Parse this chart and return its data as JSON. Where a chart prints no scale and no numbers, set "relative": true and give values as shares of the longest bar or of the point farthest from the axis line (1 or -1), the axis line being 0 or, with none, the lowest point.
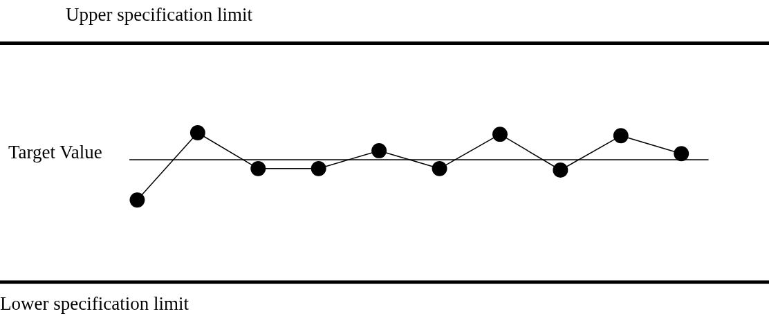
{
  "chart_data": {
    "type": "line",
    "relative": true,
    "categories": [
      null,
      null,
      null,
      null,
      null,
      null,
      null,
      null,
      null,
      null
    ],
    "series": [
      {
        "color": "#000000",
        "values": [
          0.55,
          1,
          0.76,
          0.76,
          0.88,
          0.76,
          0.99,
          0.75,
          0.98,
          0.86
        ]
      }
    ],
    "marker": "circle",
    "ref_lines": [
      {
        "axis": "y",
        "value": 1.6,
        "label": "Upper specification limit",
        "color": "#000000"
      },
      {
        "axis": "y",
        "value": 0.82,
        "label": "Target Value",
        "color": "#000000"
      },
      {
        "axis": "y",
        "value": 0,
        "label": "Lower specification limit",
        "color": "#000000"
      }
    ]
  }
}
